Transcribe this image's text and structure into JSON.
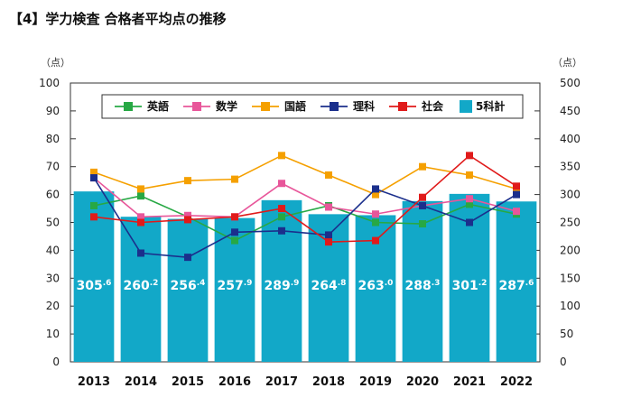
{
  "title": "【4】学力検査 合格者平均点の推移",
  "chart_data": {
    "type": "bar+line",
    "categories": [
      "2013",
      "2014",
      "2015",
      "2016",
      "2017",
      "2018",
      "2019",
      "2020",
      "2021",
      "2022"
    ],
    "left_axis": {
      "unit": "（点）",
      "ylim": [
        0,
        100
      ],
      "ticks": [
        "0",
        "10",
        "20",
        "30",
        "40",
        "50",
        "60",
        "70",
        "80",
        "90",
        "100"
      ]
    },
    "right_axis": {
      "unit": "（点）",
      "ylim": [
        0,
        500
      ],
      "ticks": [
        "0",
        "50",
        "100",
        "150",
        "200",
        "250",
        "300",
        "350",
        "400",
        "450",
        "500"
      ]
    },
    "bars": {
      "name": "5科計",
      "axis": "right",
      "color": "#12a8c8",
      "values": [
        305.6,
        260.2,
        256.4,
        257.9,
        289.9,
        264.8,
        263.0,
        288.3,
        301.2,
        287.6
      ],
      "labels": [
        {
          "int": "305",
          "dec": ".6"
        },
        {
          "int": "260",
          "dec": ".2"
        },
        {
          "int": "256",
          "dec": ".4"
        },
        {
          "int": "257",
          "dec": ".9"
        },
        {
          "int": "289",
          "dec": ".9"
        },
        {
          "int": "264",
          "dec": ".8"
        },
        {
          "int": "263",
          "dec": ".0"
        },
        {
          "int": "288",
          "dec": ".3"
        },
        {
          "int": "301",
          "dec": ".2"
        },
        {
          "int": "287",
          "dec": ".6"
        }
      ]
    },
    "series": [
      {
        "name": "英語",
        "color": "#27a844",
        "values": [
          56,
          59.5,
          52,
          43.5,
          52,
          56,
          50,
          49.5,
          56.5,
          53
        ]
      },
      {
        "name": "数学",
        "color": "#e8569a",
        "values": [
          66,
          52,
          52.5,
          52,
          64,
          55.5,
          53,
          56,
          58.5,
          54
        ]
      },
      {
        "name": "国語",
        "color": "#f5a000",
        "values": [
          68,
          62,
          65,
          65.5,
          74,
          67,
          60,
          70,
          67,
          62
        ]
      },
      {
        "name": "理科",
        "color": "#1b2f8c",
        "values": [
          66,
          39,
          37.5,
          46.5,
          47,
          45.5,
          62,
          56,
          50,
          60
        ]
      },
      {
        "name": "社会",
        "color": "#e01a1a",
        "values": [
          52,
          50,
          51,
          52,
          55,
          43,
          43.5,
          59,
          74,
          63
        ]
      }
    ],
    "legend_order": [
      "英語",
      "数学",
      "国語",
      "理科",
      "社会",
      "5科計"
    ],
    "legend_position": "top",
    "grid": false
  }
}
